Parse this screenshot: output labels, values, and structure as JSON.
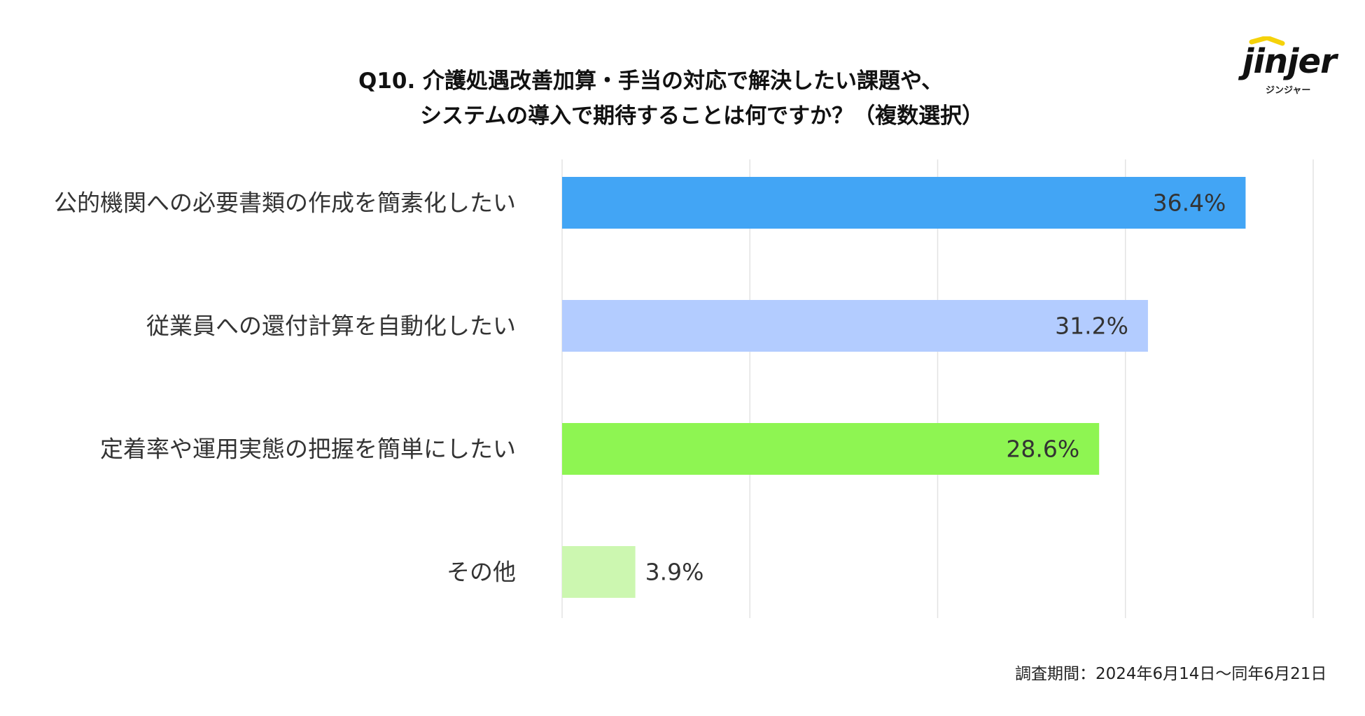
{
  "title": {
    "line1": "Q10. 介護処遇改善加算・手当の対応で解決したい課題や、",
    "line2": "システムの導入で期待することは何ですか？（複数選択）"
  },
  "logo": {
    "text": "jinjer",
    "subtext": "ジンジャー"
  },
  "footnote": "調査期間：2024年6月14日〜同年6月21日",
  "chart_data": {
    "type": "bar",
    "orientation": "horizontal",
    "categories": [
      "公的機関への必要書類の作成を簡素化したい",
      "従業員への還付計算を自動化したい",
      "定着率や運用実態の把握を簡単にしたい",
      "その他"
    ],
    "values": [
      36.4,
      31.2,
      28.6,
      3.9
    ],
    "value_labels": [
      "36.4%",
      "31.2%",
      "28.6%",
      "3.9%"
    ],
    "colors": [
      "#42a5f5",
      "#b3ccff",
      "#8ef552",
      "#ccf7b0"
    ],
    "xlim": [
      0,
      40
    ],
    "grid": true,
    "legend": "none"
  }
}
